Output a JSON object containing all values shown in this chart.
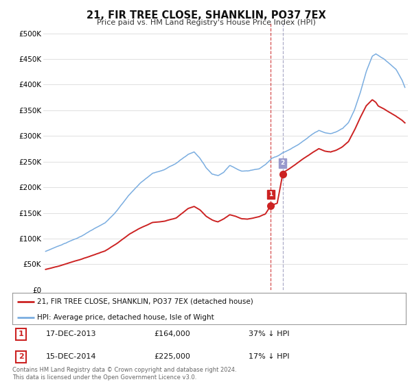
{
  "title": "21, FIR TREE CLOSE, SHANKLIN, PO37 7EX",
  "subtitle": "Price paid vs. HM Land Registry's House Price Index (HPI)",
  "ylabel_ticks": [
    "£0",
    "£50K",
    "£100K",
    "£150K",
    "£200K",
    "£250K",
    "£300K",
    "£350K",
    "£400K",
    "£450K",
    "£500K"
  ],
  "ytick_values": [
    0,
    50000,
    100000,
    150000,
    200000,
    250000,
    300000,
    350000,
    400000,
    450000,
    500000
  ],
  "ylim": [
    0,
    520000
  ],
  "xlim_start": 1994.8,
  "xlim_end": 2025.5,
  "hpi_color": "#7aade0",
  "price_color": "#cc2222",
  "legend_label_red": "21, FIR TREE CLOSE, SHANKLIN, PO37 7EX (detached house)",
  "legend_label_blue": "HPI: Average price, detached house, Isle of Wight",
  "sale1_date": 2013.96,
  "sale1_price": 164000,
  "sale2_date": 2014.96,
  "sale2_price": 225000,
  "table_row1": [
    "1",
    "17-DEC-2013",
    "£164,000",
    "37% ↓ HPI"
  ],
  "table_row2": [
    "2",
    "15-DEC-2014",
    "£225,000",
    "17% ↓ HPI"
  ],
  "footer": "Contains HM Land Registry data © Crown copyright and database right 2024.\nThis data is licensed under the Open Government Licence v3.0.",
  "background_color": "#ffffff",
  "grid_color": "#e0e0e0"
}
